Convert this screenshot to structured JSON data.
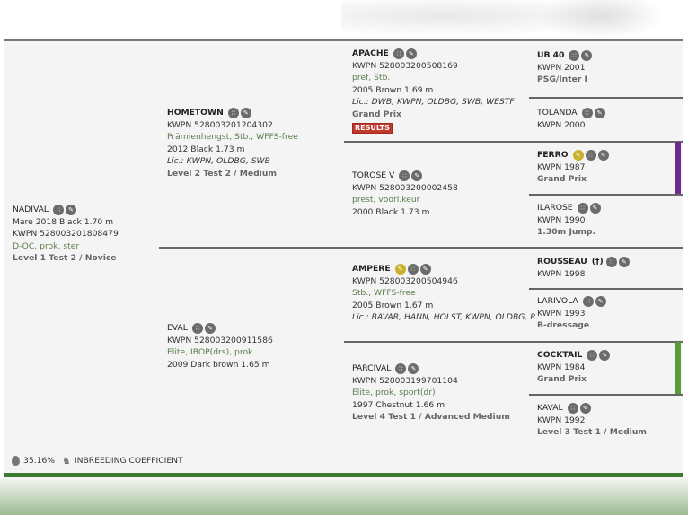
{
  "colors": {
    "green_accent": "#3f7a32",
    "purple_bar": "#6a2a8c",
    "green_bar": "#5a9a3a",
    "predicate": "#5b7d4c",
    "results_badge": "#c0392b",
    "icon_gold": "#c9b12c",
    "icon_gray": "#6b6b6b"
  },
  "horses": [
    {
      "id": "nadival",
      "name": "NADIVAL",
      "bold": false,
      "icons": [
        "pedigree-icon",
        "edit-icon"
      ],
      "lines": [
        {
          "t": "Mare 2018 Black 1.70 m",
          "s": ""
        },
        {
          "t": "KWPN 528003201808479",
          "s": ""
        },
        {
          "t": "D-OC, prok, ster",
          "s": "pred"
        },
        {
          "t": "Level 1 Test 2 / Novice",
          "s": "level"
        }
      ]
    },
    {
      "id": "hometown",
      "name": "HOMETOWN",
      "bold": true,
      "icons": [
        "pedigree-icon",
        "edit-icon"
      ],
      "lines": [
        {
          "t": "KWPN 528003201204302",
          "s": ""
        },
        {
          "t": "Prämienhengst, Stb., WFFS-free",
          "s": "pred"
        },
        {
          "t": "2012 Black 1.73 m",
          "s": ""
        },
        {
          "t": "Lic.: KWPN, OLDBG, SWB",
          "s": "lic"
        },
        {
          "t": "Level 2 Test 2 / Medium",
          "s": "level"
        }
      ]
    },
    {
      "id": "eval",
      "name": "EVAL",
      "bold": false,
      "icons": [
        "pedigree-icon",
        "edit-icon"
      ],
      "lines": [
        {
          "t": "KWPN 528003200911586",
          "s": ""
        },
        {
          "t": "Elite, IBOP(drs), prok",
          "s": "pred"
        },
        {
          "t": "2009 Dark brown 1.65 m",
          "s": ""
        }
      ]
    },
    {
      "id": "apache",
      "name": "APACHE",
      "bold": true,
      "icons": [
        "pedigree-icon",
        "edit-icon"
      ],
      "lines": [
        {
          "t": "KWPN 528003200508169",
          "s": ""
        },
        {
          "t": "pref, Stb.",
          "s": "pred"
        },
        {
          "t": "2005 Brown 1.69 m",
          "s": ""
        },
        {
          "t": "Lic.: DWB, KWPN, OLDBG, SWB, WESTF",
          "s": "lic"
        },
        {
          "t": "Grand Prix",
          "s": "level"
        }
      ],
      "badge": "RESULTS"
    },
    {
      "id": "torose-v",
      "name": "TOROSE V",
      "bold": false,
      "icons": [
        "pedigree-icon",
        "edit-icon"
      ],
      "lines": [
        {
          "t": "KWPN 528003200002458",
          "s": ""
        },
        {
          "t": "prest, voorl.keur",
          "s": "pred"
        },
        {
          "t": "2000 Black 1.73 m",
          "s": ""
        }
      ]
    },
    {
      "id": "ampere",
      "name": "AMPERE",
      "bold": true,
      "icons": [
        "sport-icon",
        "pedigree-icon",
        "edit-icon"
      ],
      "lines": [
        {
          "t": "KWPN 528003200504946",
          "s": ""
        },
        {
          "t": "Stb., WFFS-free",
          "s": "pred"
        },
        {
          "t": "2005 Brown 1.67 m",
          "s": ""
        },
        {
          "t": "Lic.: BAVAR, HANN, HOLST, KWPN, OLDBG, R...",
          "s": "lic"
        }
      ]
    },
    {
      "id": "parcival",
      "name": "PARCIVAL",
      "bold": false,
      "icons": [
        "pedigree-icon",
        "edit-icon"
      ],
      "lines": [
        {
          "t": "KWPN 528003199701104",
          "s": ""
        },
        {
          "t": "Elite, prok, sport(dr)",
          "s": "pred"
        },
        {
          "t": "1997 Chestnut 1.66 m",
          "s": ""
        },
        {
          "t": "Level 4 Test 1 / Advanced Medium",
          "s": "level"
        }
      ]
    },
    {
      "id": "ub-40",
      "name": "UB 40",
      "bold": true,
      "icons": [
        "pedigree-icon",
        "edit-icon"
      ],
      "lines": [
        {
          "t": "KWPN 2001",
          "s": ""
        },
        {
          "t": "PSG/Inter I",
          "s": "level"
        }
      ]
    },
    {
      "id": "tolanda",
      "name": "TOLANDA",
      "bold": false,
      "icons": [
        "pedigree-icon",
        "edit-icon"
      ],
      "lines": [
        {
          "t": "KWPN 2000",
          "s": ""
        }
      ]
    },
    {
      "id": "ferro",
      "name": "FERRO",
      "bold": true,
      "icons": [
        "sport-icon",
        "pedigree-icon",
        "edit-icon"
      ],
      "lines": [
        {
          "t": "KWPN 1987",
          "s": ""
        },
        {
          "t": "Grand Prix",
          "s": "level"
        }
      ]
    },
    {
      "id": "ilarose",
      "name": "ILAROSE",
      "bold": false,
      "icons": [
        "pedigree-icon",
        "edit-icon"
      ],
      "lines": [
        {
          "t": "KWPN 1990",
          "s": ""
        },
        {
          "t": "1.30m Jump.",
          "s": "level"
        }
      ]
    },
    {
      "id": "rousseau",
      "name": "ROUSSEAU",
      "bold": true,
      "deceased": "(†)",
      "icons": [
        "pedigree-icon",
        "edit-icon"
      ],
      "lines": [
        {
          "t": "KWPN 1998",
          "s": ""
        }
      ]
    },
    {
      "id": "larivola",
      "name": "LARIVOLA",
      "bold": false,
      "icons": [
        "pedigree-icon",
        "edit-icon"
      ],
      "lines": [
        {
          "t": "KWPN 1993",
          "s": ""
        },
        {
          "t": "B-dressage",
          "s": "level"
        }
      ]
    },
    {
      "id": "cocktail",
      "name": "COCKTAIL",
      "bold": true,
      "icons": [
        "pedigree-icon",
        "edit-icon"
      ],
      "lines": [
        {
          "t": "KWPN 1984",
          "s": ""
        },
        {
          "t": "Grand Prix",
          "s": "level"
        }
      ]
    },
    {
      "id": "kaval",
      "name": "KAVAL",
      "bold": false,
      "icons": [
        "pedigree-icon",
        "edit-icon"
      ],
      "lines": [
        {
          "t": "KWPN 1992",
          "s": ""
        },
        {
          "t": "Level 3 Test 1 / Medium",
          "s": "level"
        }
      ]
    }
  ],
  "inbreeding": {
    "value": "35.16%",
    "label": "INBREEDING COEFFICIENT"
  }
}
